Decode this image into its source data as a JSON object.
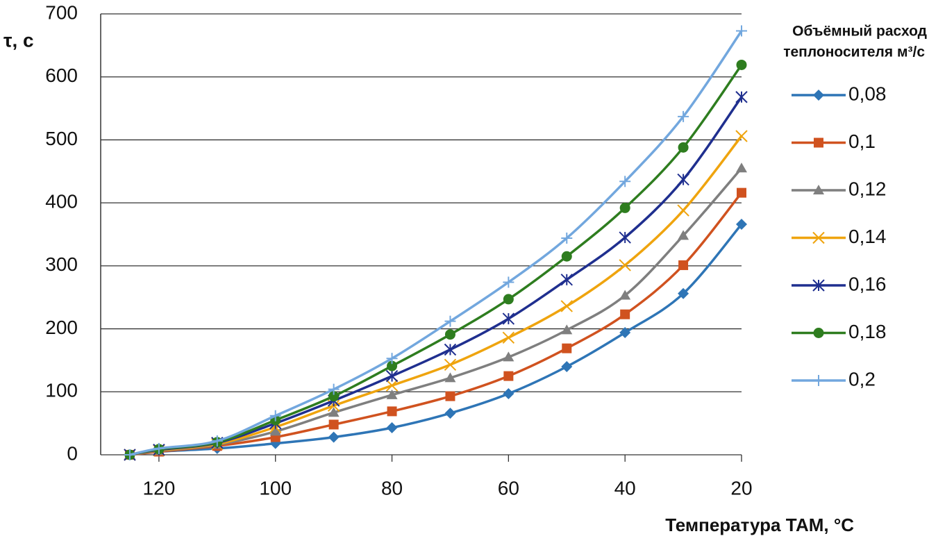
{
  "chart_data": {
    "type": "line",
    "y_label": "τ,  с",
    "x_label": "Температура  ТАМ,  °С",
    "legend_title": [
      "Объёмный расход",
      "теплоносителя м³/с"
    ],
    "x": [
      125,
      120,
      110,
      100,
      90,
      80,
      70,
      60,
      50,
      40,
      30,
      20
    ],
    "xlim": [
      130,
      20
    ],
    "xticks": [
      120,
      100,
      80,
      60,
      40,
      20
    ],
    "ylim": [
      0,
      700
    ],
    "yticks": [
      0,
      100,
      200,
      300,
      400,
      500,
      600,
      700
    ],
    "grid": true,
    "legend": "right",
    "series": [
      {
        "name": "0,08",
        "color": "#2e75b6",
        "marker": "diamond",
        "values": [
          0,
          5,
          10,
          18,
          28,
          43,
          66,
          97,
          140,
          194,
          256,
          366
        ]
      },
      {
        "name": "0,1",
        "color": "#d0521f",
        "marker": "square",
        "values": [
          0,
          5,
          14,
          28,
          48,
          69,
          93,
          125,
          169,
          223,
          301,
          416
        ]
      },
      {
        "name": "0,12",
        "color": "#7f7f7f",
        "marker": "triangle",
        "values": [
          0,
          6,
          16,
          37,
          67,
          95,
          122,
          155,
          198,
          253,
          348,
          455
        ]
      },
      {
        "name": "0,14",
        "color": "#efa40e",
        "marker": "x",
        "values": [
          0,
          7,
          17,
          44,
          78,
          110,
          143,
          186,
          236,
          301,
          388,
          506
        ]
      },
      {
        "name": "0,16",
        "color": "#1f2f8f",
        "marker": "star",
        "values": [
          0,
          8,
          19,
          50,
          86,
          125,
          167,
          216,
          278,
          345,
          437,
          568
        ]
      },
      {
        "name": "0,18",
        "color": "#2e7d1f",
        "marker": "circle",
        "values": [
          0,
          9,
          20,
          55,
          93,
          141,
          191,
          247,
          315,
          392,
          488,
          619
        ]
      },
      {
        "name": "0,2",
        "color": "#72a7de",
        "marker": "plus",
        "values": [
          0,
          10,
          22,
          62,
          104,
          153,
          212,
          274,
          344,
          434,
          537,
          673
        ]
      }
    ]
  }
}
